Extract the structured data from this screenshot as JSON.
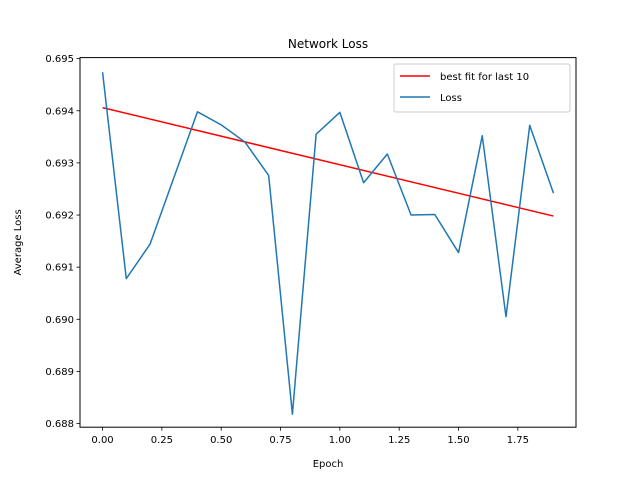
{
  "chart_data": {
    "type": "line",
    "title": "Network Loss",
    "xlabel": "Epoch",
    "ylabel": "Average Loss",
    "xlim": [
      -0.095,
      1.995
    ],
    "ylim": [
      0.68793,
      0.69502
    ],
    "xticks": [
      0.0,
      0.25,
      0.5,
      0.75,
      1.0,
      1.25,
      1.5,
      1.75
    ],
    "xtick_labels": [
      "0.00",
      "0.25",
      "0.50",
      "0.75",
      "1.00",
      "1.25",
      "1.50",
      "1.75"
    ],
    "yticks": [
      0.688,
      0.689,
      0.69,
      0.691,
      0.692,
      0.693,
      0.694,
      0.695
    ],
    "ytick_labels": [
      "0.688",
      "0.689",
      "0.690",
      "0.691",
      "0.692",
      "0.693",
      "0.694",
      "0.695"
    ],
    "grid": false,
    "legend_position": "top-right",
    "series": [
      {
        "name": "best fit for last 10",
        "color": "#ff0000",
        "x": [
          0.0,
          1.9
        ],
        "y": [
          0.69406,
          0.69198
        ]
      },
      {
        "name": "Loss",
        "color": "#1f77b4",
        "x": [
          0.0,
          0.1,
          0.2,
          0.3,
          0.4,
          0.5,
          0.6,
          0.7,
          0.8,
          0.9,
          1.0,
          1.1,
          1.2,
          1.3,
          1.4,
          1.5,
          1.6,
          1.7,
          1.8,
          1.9
        ],
        "y": [
          0.69474,
          0.69078,
          0.69144,
          0.69271,
          0.69398,
          0.69373,
          0.6934,
          0.69276,
          0.68818,
          0.69355,
          0.69397,
          0.69262,
          0.69317,
          0.692,
          0.69201,
          0.69128,
          0.69352,
          0.69005,
          0.69372,
          0.69242
        ]
      }
    ]
  }
}
